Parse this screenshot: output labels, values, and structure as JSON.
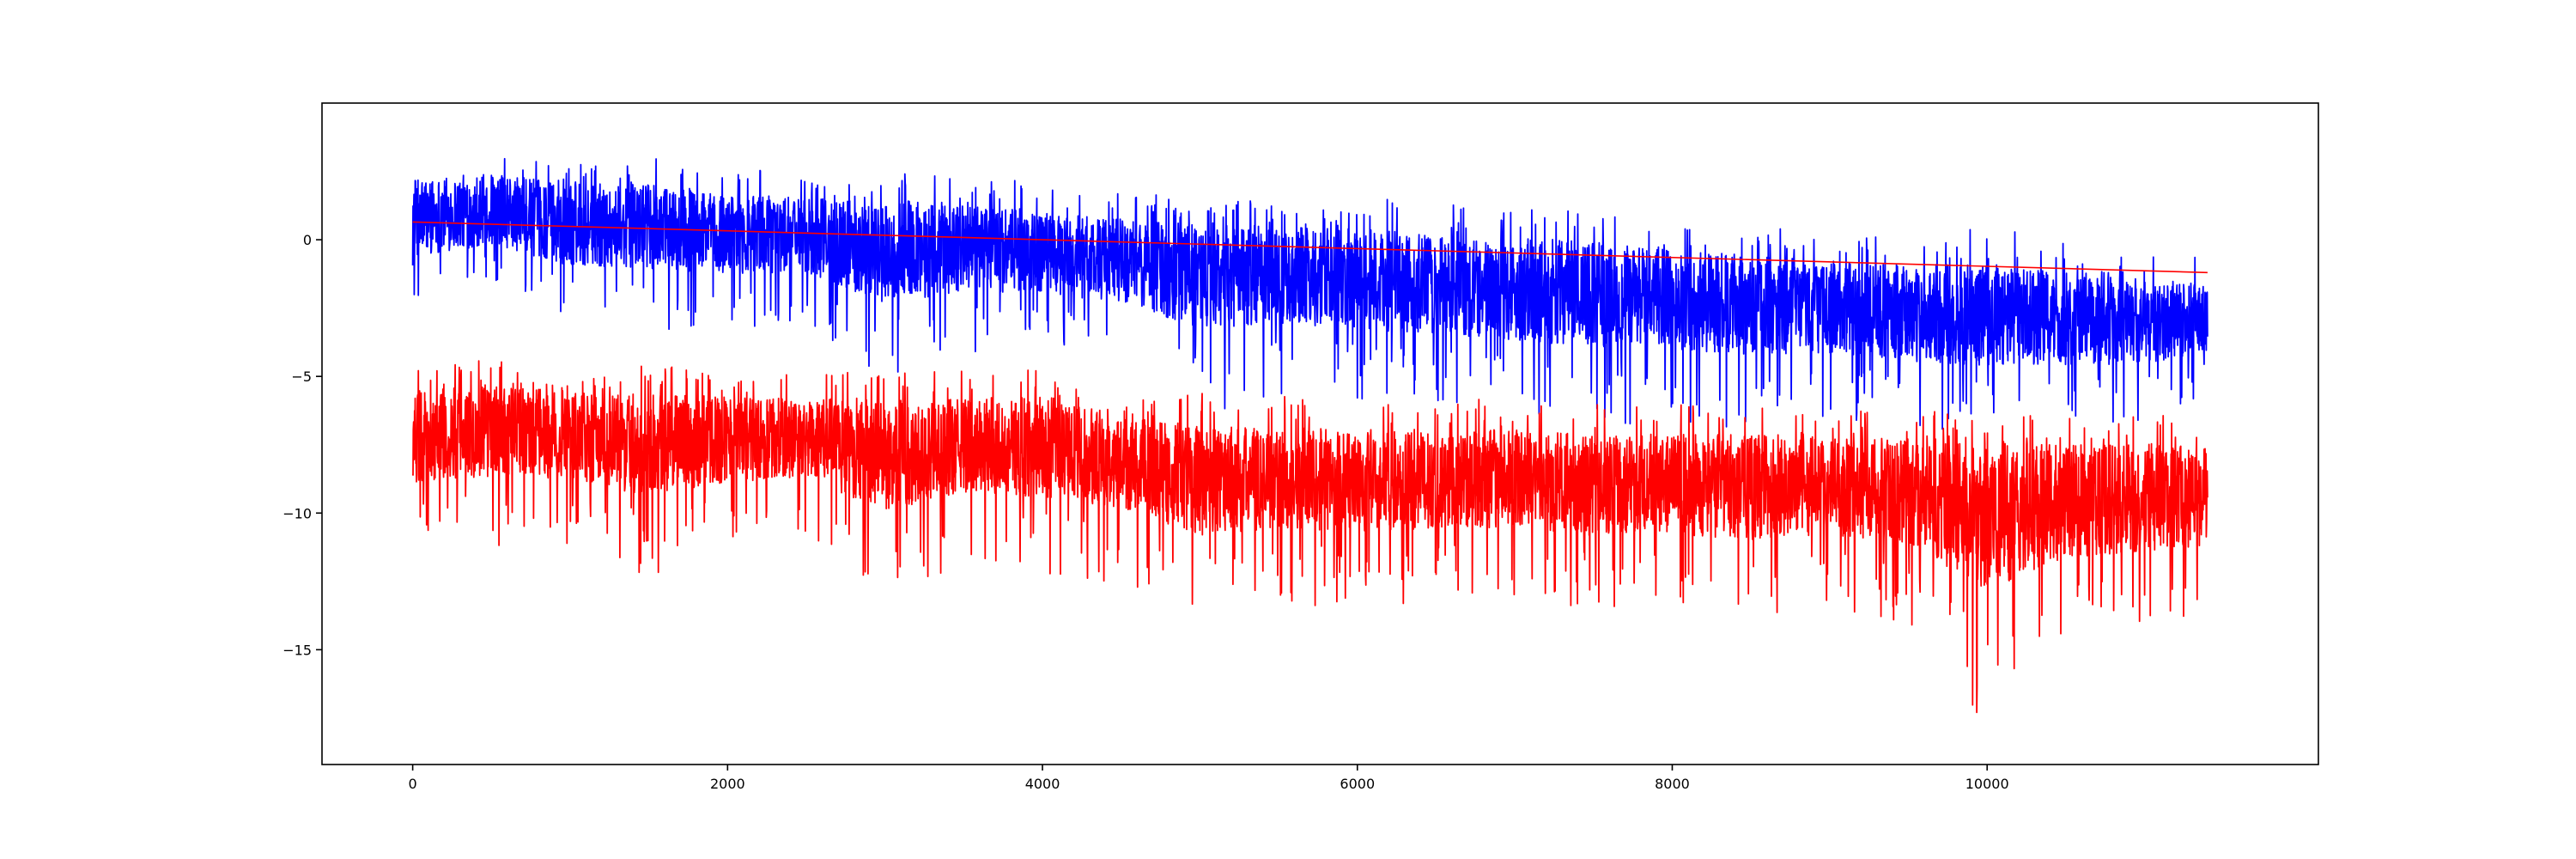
{
  "chart_data": {
    "type": "line",
    "title": "",
    "xlabel": "",
    "ylabel": "",
    "xlim": [
      -576,
      12104
    ],
    "ylim": [
      -19.2,
      5.0
    ],
    "xticks": [
      0,
      2000,
      4000,
      6000,
      8000,
      10000
    ],
    "xtick_labels": [
      "0",
      "2000",
      "4000",
      "6000",
      "8000",
      "10000"
    ],
    "yticks": [
      0,
      -5,
      -10,
      -15
    ],
    "ytick_labels": [
      "0",
      "−5",
      "−10",
      "−15"
    ],
    "grid": false,
    "legend": "none",
    "n_points": 11400,
    "series": [
      {
        "color": "#0000ff",
        "kind": "noisy",
        "x": [
          0,
          500,
          1000,
          1500,
          2000,
          2500,
          3000,
          3500,
          4000,
          4500,
          5000,
          5500,
          6000,
          6500,
          7000,
          7500,
          8000,
          8500,
          9000,
          9500,
          10000,
          10500,
          11000,
          11400
        ],
        "center": [
          0.9,
          1.1,
          0.9,
          0.8,
          0.5,
          0.3,
          0.1,
          0.0,
          -0.3,
          -0.5,
          -0.7,
          -0.8,
          -1.0,
          -1.2,
          -1.4,
          -1.6,
          -1.8,
          -2.0,
          -2.2,
          -2.4,
          -2.5,
          -2.7,
          -2.8,
          -2.9
        ],
        "upper": [
          3.4,
          3.5,
          3.0,
          3.0,
          2.6,
          2.6,
          2.4,
          2.6,
          2.0,
          1.8,
          1.6,
          1.5,
          1.6,
          1.3,
          1.3,
          1.2,
          0.8,
          0.6,
          0.4,
          0.2,
          0.5,
          0.0,
          -0.5,
          -0.6
        ],
        "lower": [
          -2.4,
          -1.8,
          -3.2,
          -3.3,
          -3.4,
          -3.0,
          -5.3,
          -4.2,
          -4.0,
          -4.5,
          -6.5,
          -5.8,
          -6.0,
          -6.3,
          -6.5,
          -6.7,
          -6.8,
          -6.9,
          -6.5,
          -7.0,
          -7.2,
          -7.0,
          -6.8,
          -5.6
        ]
      },
      {
        "color": "#ff0000",
        "kind": "noisy",
        "x": [
          0,
          500,
          1000,
          1500,
          2000,
          2500,
          3000,
          3500,
          4000,
          4500,
          5000,
          5500,
          6000,
          6500,
          7000,
          7500,
          8000,
          8500,
          9000,
          9500,
          10000,
          10500,
          11000,
          11400
        ],
        "center": [
          -6.6,
          -6.5,
          -6.8,
          -6.9,
          -7.1,
          -7.0,
          -7.2,
          -7.2,
          -6.9,
          -7.6,
          -8.2,
          -8.3,
          -8.4,
          -8.3,
          -8.5,
          -8.6,
          -8.5,
          -8.5,
          -8.6,
          -8.7,
          -8.8,
          -9.0,
          -8.8,
          -8.9
        ],
        "upper": [
          -4.6,
          -4.3,
          -4.6,
          -4.6,
          -4.6,
          -4.8,
          -4.8,
          -4.7,
          -4.7,
          -5.5,
          -5.6,
          -5.7,
          -5.7,
          -6.1,
          -5.6,
          -6.0,
          -6.0,
          -6.0,
          -6.1,
          -6.2,
          -6.3,
          -6.3,
          -6.3,
          -6.5
        ],
        "lower": [
          -11.7,
          -11.3,
          -11.3,
          -12.4,
          -11.0,
          -10.8,
          -13.3,
          -11.8,
          -12.5,
          -12.5,
          -14.0,
          -13.3,
          -13.5,
          -13.3,
          -13.0,
          -13.6,
          -13.6,
          -14.0,
          -13.5,
          -14.0,
          -17.8,
          -14.9,
          -14.6,
          -14.0
        ]
      },
      {
        "color": "#ff0000",
        "kind": "trend",
        "x": [
          0,
          11400
        ],
        "y": [
          0.65,
          -1.2
        ]
      }
    ]
  }
}
